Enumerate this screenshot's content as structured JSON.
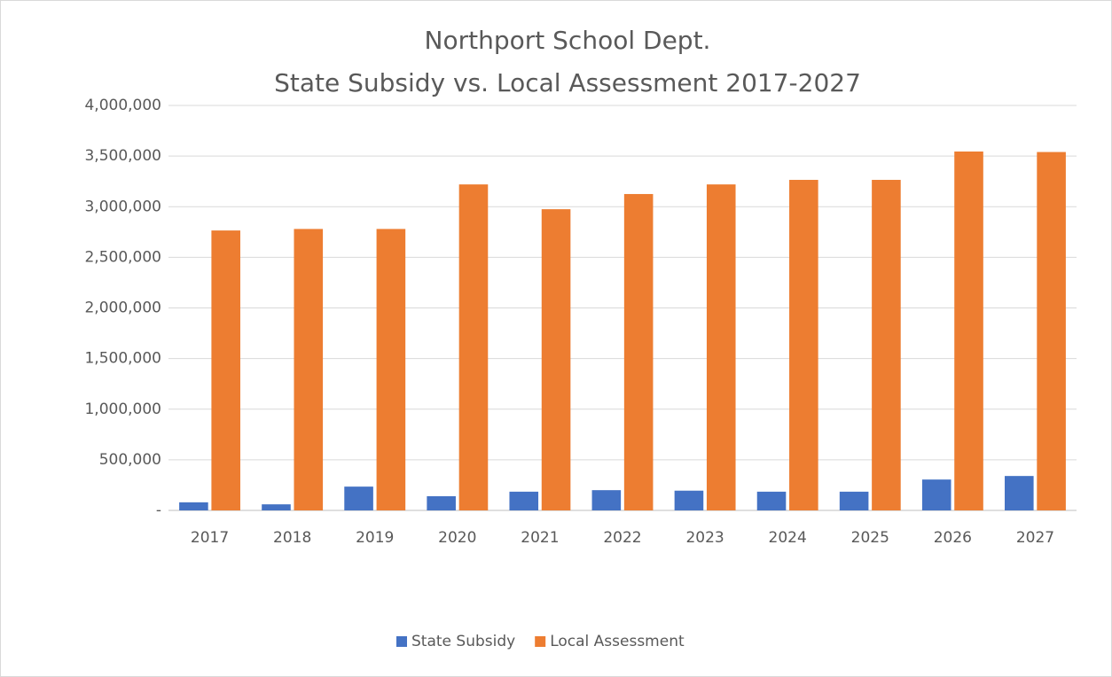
{
  "chart_data": {
    "type": "bar",
    "title": [
      "Northport School Dept.",
      "State Subsidy vs. Local Assessment 2017-2027"
    ],
    "categories": [
      "2017",
      "2018",
      "2019",
      "2020",
      "2021",
      "2022",
      "2023",
      "2024",
      "2025",
      "2026",
      "2027"
    ],
    "series": [
      {
        "name": "State Subsidy",
        "color": "#4472c4",
        "values": [
          80000,
          60000,
          235000,
          140000,
          185000,
          200000,
          195000,
          185000,
          185000,
          305000,
          340000
        ]
      },
      {
        "name": "Local Assessment",
        "color": "#ed7d31",
        "values": [
          2765000,
          2780000,
          2780000,
          3220000,
          2975000,
          3125000,
          3220000,
          3265000,
          3265000,
          3545000,
          3540000
        ]
      }
    ],
    "ylim": [
      0,
      4000000
    ],
    "yticks": [
      {
        "value": 0,
        "label": "-"
      },
      {
        "value": 500000,
        "label": "500,000"
      },
      {
        "value": 1000000,
        "label": "1,000,000"
      },
      {
        "value": 1500000,
        "label": "1,500,000"
      },
      {
        "value": 2000000,
        "label": "2,000,000"
      },
      {
        "value": 2500000,
        "label": "2,500,000"
      },
      {
        "value": 3000000,
        "label": "3,000,000"
      },
      {
        "value": 3500000,
        "label": "3,500,000"
      },
      {
        "value": 4000000,
        "label": "4,000,000"
      }
    ],
    "grid": true,
    "legend": "bottom"
  }
}
